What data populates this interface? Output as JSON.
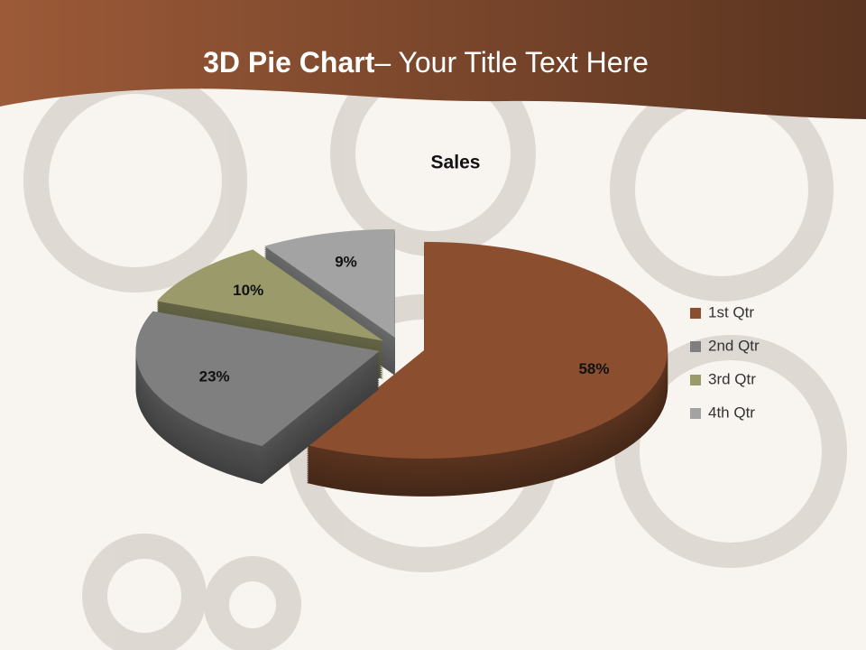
{
  "slide_title": {
    "bold": "3D Pie Chart",
    "rest": "– Your Title Text Here"
  },
  "chart_data": {
    "type": "pie3d",
    "title": "Sales",
    "categories": [
      "1st Qtr",
      "2nd Qtr",
      "3rd Qtr",
      "4th Qtr"
    ],
    "values": [
      58,
      23,
      10,
      9
    ],
    "value_labels": [
      "58%",
      "23%",
      "10%",
      "9%"
    ],
    "colors": [
      "#8b4f30",
      "#7f7f7f",
      "#9a9a6a",
      "#a3a3a3"
    ],
    "legend": "right"
  }
}
